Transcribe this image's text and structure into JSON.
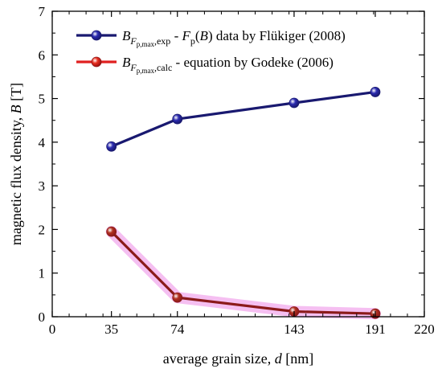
{
  "chart_data": {
    "type": "line",
    "xlabel": {
      "text": "average grain size, ",
      "var": "d",
      "unit": " [nm]"
    },
    "ylabel": {
      "text": "magnetic flux density, ",
      "var": "B",
      "unit": " [T]"
    },
    "xlim": [
      0,
      220
    ],
    "ylim": [
      0,
      7
    ],
    "x_ticks": [
      0,
      35,
      74,
      143,
      191,
      220
    ],
    "x_minor_step": 10,
    "y_ticks": [
      0,
      1,
      2,
      3,
      4,
      5,
      6,
      7
    ],
    "y_minor_step": 0.5,
    "grid": false,
    "legend_position": "top-left",
    "series": [
      {
        "name": "B_Fp,max,exp - Fp(B) data by Flükiger (2008)",
        "legend_main": "B",
        "legend_sub": "F",
        "legend_subsub": "p,max",
        "legend_sub_tail": ",exp",
        "legend_text1": " - ",
        "legend_italic2": "F",
        "legend_sub2": "p",
        "legend_text2": "(",
        "legend_italic3": "B",
        "legend_text3": ") data by Flükiger (2008)",
        "color": "#191970",
        "marker_color": "#2b2bb0",
        "x": [
          35,
          74,
          143,
          191
        ],
        "y": [
          3.9,
          4.53,
          4.9,
          5.15
        ]
      },
      {
        "name": "B_Fp,max,calc - equation by Godeke (2006)",
        "legend_main": "B",
        "legend_sub": "F",
        "legend_subsub": "p,max",
        "legend_sub_tail": ",calc",
        "legend_text1": " - equation by Godeke (2006)",
        "color": "#8b1a1a",
        "marker_color": "#b03020",
        "legend_line_color": "#e02020",
        "legend_marker_color": "#e83020",
        "glow_color": "#f4b8f0",
        "x": [
          35,
          74,
          143,
          191
        ],
        "y": [
          1.95,
          0.44,
          0.12,
          0.07
        ]
      }
    ]
  }
}
